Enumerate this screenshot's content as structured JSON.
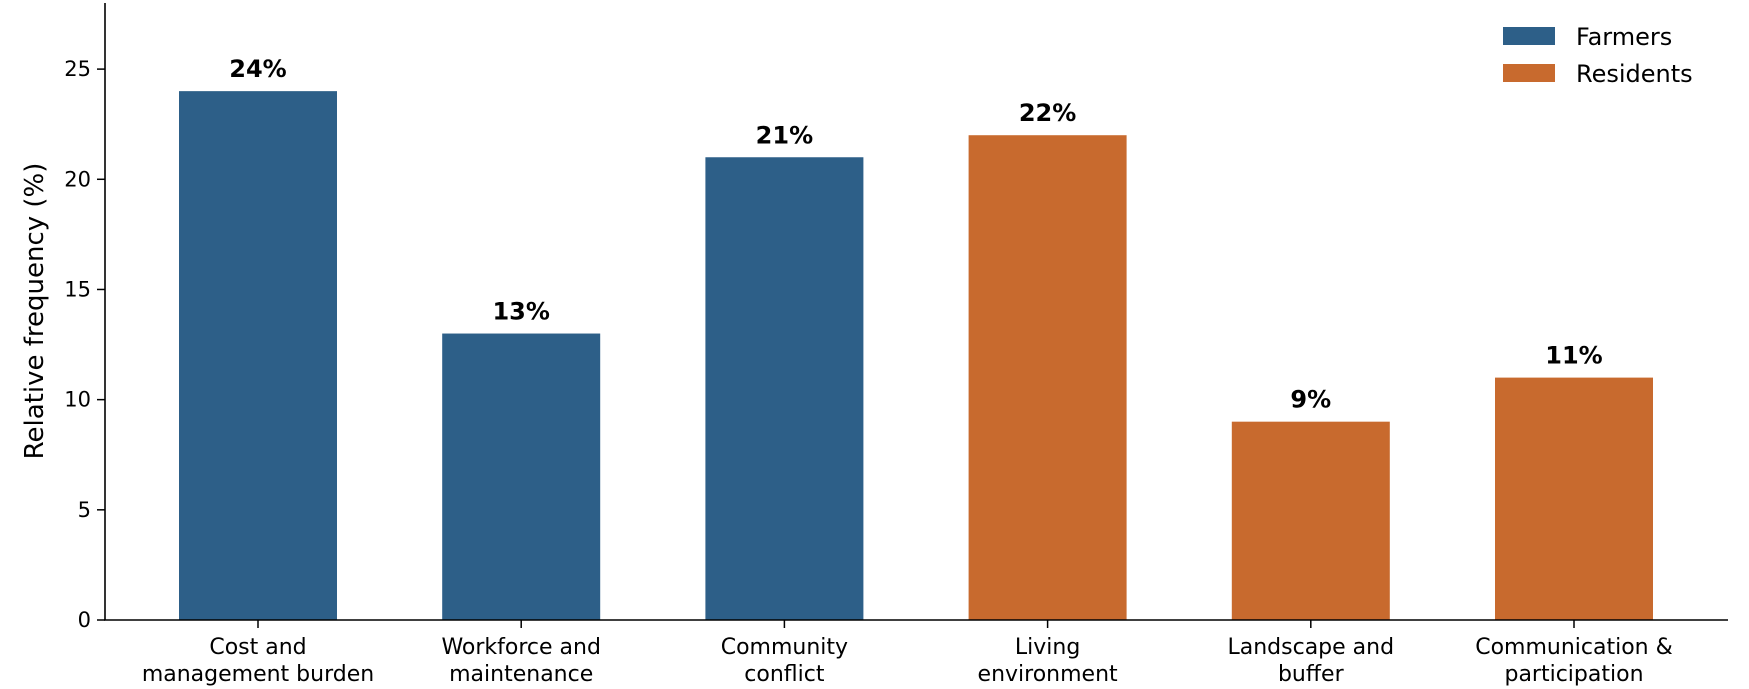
{
  "chart_data": {
    "type": "bar",
    "title": "",
    "xlabel": "",
    "ylabel": "Relative frequency (%)",
    "ylim": [
      0,
      28
    ],
    "yticks": [
      0,
      5,
      10,
      15,
      20,
      25
    ],
    "grid": false,
    "legend_position": "top-right",
    "categories": [
      [
        "Cost and",
        "management burden"
      ],
      [
        "Workforce and",
        "maintenance"
      ],
      [
        "Community",
        "conflict"
      ],
      [
        "Living",
        "environment"
      ],
      [
        "Landscape and",
        "buffer"
      ],
      [
        "Communication &",
        "participation"
      ]
    ],
    "values": [
      24,
      13,
      21,
      22,
      9,
      11
    ],
    "value_labels": [
      "24%",
      "13%",
      "21%",
      "22%",
      "9%",
      "11%"
    ],
    "bar_groups": [
      "Farmers",
      "Farmers",
      "Farmers",
      "Residents",
      "Residents",
      "Residents"
    ],
    "series": [
      {
        "name": "Farmers",
        "color": "#2d5f88"
      },
      {
        "name": "Residents",
        "color": "#c86a2e"
      }
    ]
  }
}
